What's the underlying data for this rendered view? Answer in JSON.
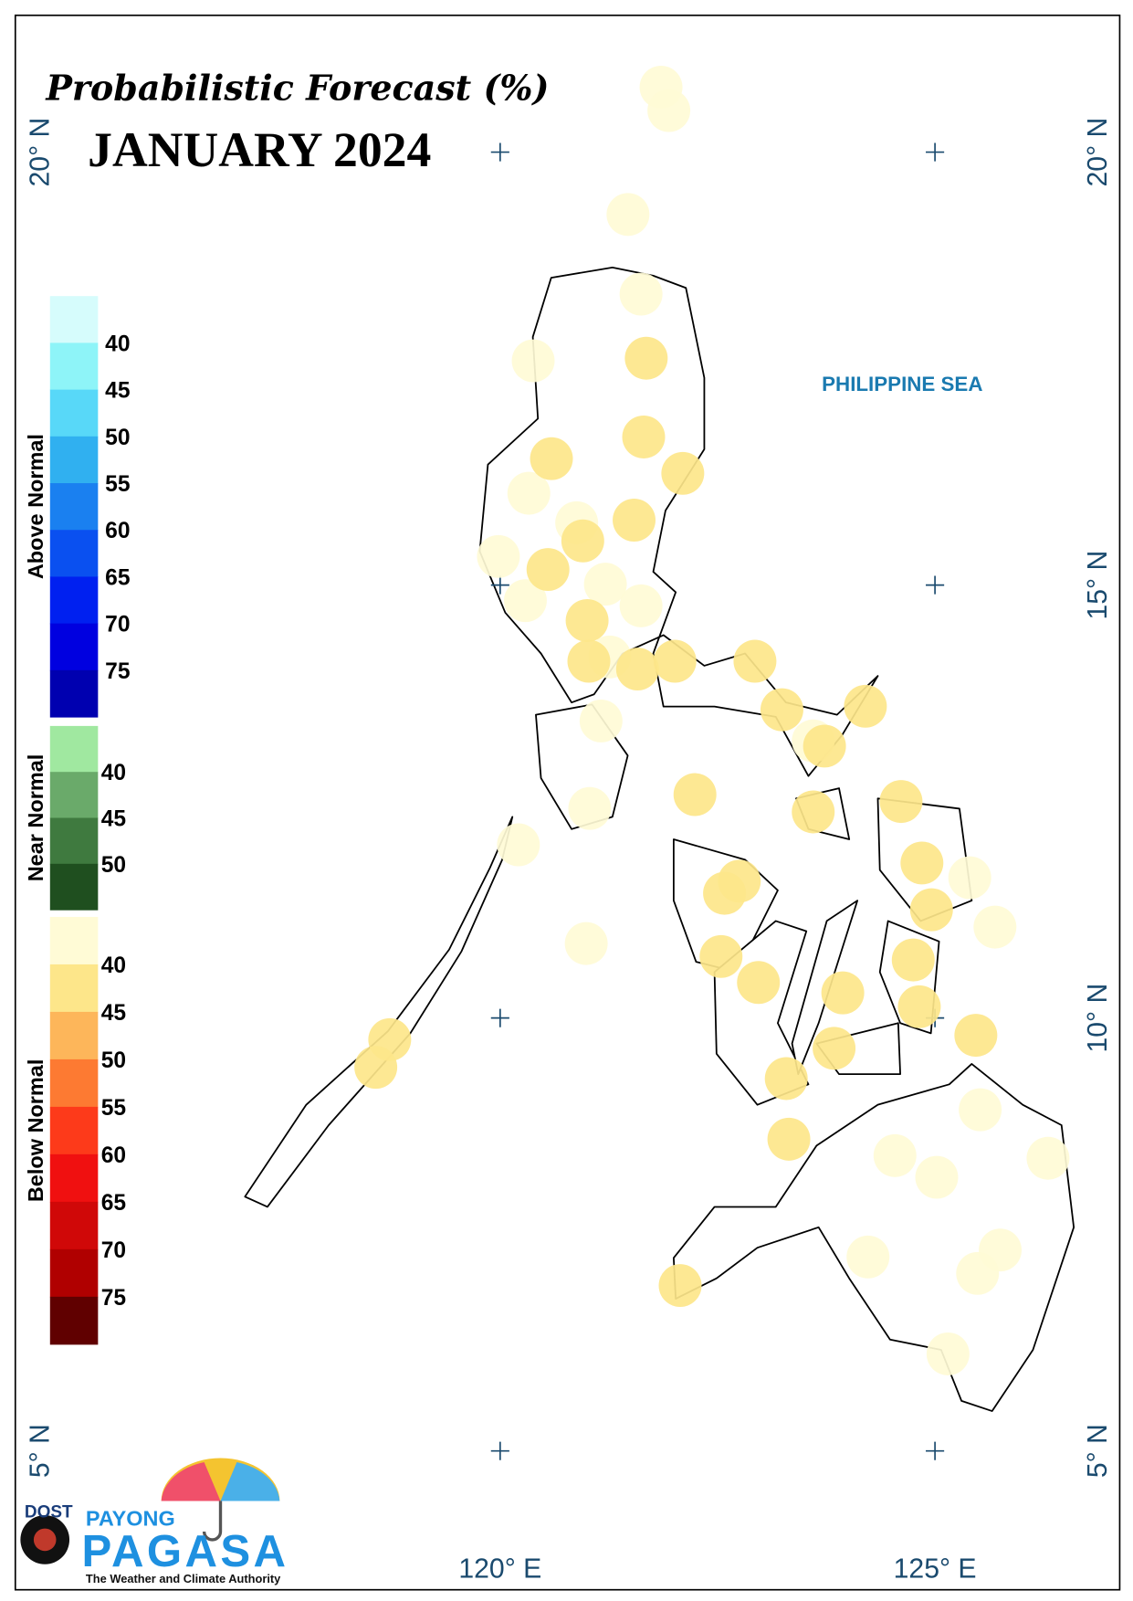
{
  "map": {
    "title": "Probabilistic Forecast (%)",
    "subtitle": "JANUARY 2024",
    "sea_label": "PHILIPPINE SEA",
    "lon_ticks": [
      {
        "value": 120,
        "label": "120° E"
      },
      {
        "value": 125,
        "label": "125° E"
      }
    ],
    "lat_ticks": [
      {
        "value": 20,
        "label": "20° N"
      },
      {
        "value": 15,
        "label": "15° N"
      },
      {
        "value": 10,
        "label": "10° N"
      },
      {
        "value": 5,
        "label": "5° N"
      }
    ],
    "legend": [
      {
        "name": "Above Normal",
        "ticks": [
          40,
          45,
          50,
          55,
          60,
          65,
          70,
          75
        ],
        "colors": [
          "#d6fcfc",
          "#8ef4f8",
          "#58d8f8",
          "#30b0f0",
          "#1a80f0",
          "#0a50f0",
          "#0020f0",
          "#0000e0",
          "#0000b0"
        ]
      },
      {
        "name": "Near Normal",
        "ticks": [
          40,
          45,
          50
        ],
        "colors": [
          "#a0e8a0",
          "#6aaa6a",
          "#3f7a3f",
          "#1f4f1f"
        ]
      },
      {
        "name": "Below Normal",
        "ticks": [
          40,
          45,
          50,
          55,
          60,
          65,
          70,
          75
        ],
        "colors": [
          "#fffbd6",
          "#fde68a",
          "#fdb65a",
          "#fd7a32",
          "#fd3a1a",
          "#f01010",
          "#d00808",
          "#b00000",
          "#600000"
        ]
      }
    ],
    "stations": [
      {
        "lon": 121.85,
        "lat": 20.75,
        "value": 38
      },
      {
        "lon": 121.94,
        "lat": 20.48,
        "value": 38
      },
      {
        "lon": 121.47,
        "lat": 19.28,
        "value": 38
      },
      {
        "lon": 121.62,
        "lat": 18.36,
        "value": 38
      },
      {
        "lon": 120.38,
        "lat": 17.59,
        "value": 38
      },
      {
        "lon": 120.33,
        "lat": 16.06,
        "value": 38
      },
      {
        "lon": 119.98,
        "lat": 15.33,
        "value": 38
      },
      {
        "lon": 120.88,
        "lat": 15.72,
        "value": 38
      },
      {
        "lon": 120.29,
        "lat": 14.82,
        "value": 38
      },
      {
        "lon": 121.21,
        "lat": 15.01,
        "value": 38
      },
      {
        "lon": 121.62,
        "lat": 14.76,
        "value": 38
      },
      {
        "lon": 121.26,
        "lat": 14.17,
        "value": 38
      },
      {
        "lon": 121.16,
        "lat": 13.43,
        "value": 38
      },
      {
        "lon": 121.03,
        "lat": 12.42,
        "value": 38
      },
      {
        "lon": 120.21,
        "lat": 12.0,
        "value": 38
      },
      {
        "lon": 120.99,
        "lat": 10.86,
        "value": 38
      },
      {
        "lon": 123.6,
        "lat": 13.2,
        "value": 38
      },
      {
        "lon": 125.4,
        "lat": 11.62,
        "value": 38
      },
      {
        "lon": 125.69,
        "lat": 11.05,
        "value": 38
      },
      {
        "lon": 125.52,
        "lat": 8.94,
        "value": 38
      },
      {
        "lon": 124.54,
        "lat": 8.41,
        "value": 38
      },
      {
        "lon": 125.02,
        "lat": 8.16,
        "value": 38
      },
      {
        "lon": 126.3,
        "lat": 8.38,
        "value": 38
      },
      {
        "lon": 124.23,
        "lat": 7.24,
        "value": 38
      },
      {
        "lon": 125.75,
        "lat": 7.32,
        "value": 38
      },
      {
        "lon": 125.49,
        "lat": 7.05,
        "value": 38
      },
      {
        "lon": 125.15,
        "lat": 6.12,
        "value": 38
      },
      {
        "lon": 121.68,
        "lat": 17.62,
        "value": 43
      },
      {
        "lon": 121.65,
        "lat": 16.71,
        "value": 43
      },
      {
        "lon": 120.59,
        "lat": 16.46,
        "value": 43
      },
      {
        "lon": 122.1,
        "lat": 16.29,
        "value": 43
      },
      {
        "lon": 121.54,
        "lat": 15.75,
        "value": 43
      },
      {
        "lon": 120.95,
        "lat": 15.51,
        "value": 43
      },
      {
        "lon": 120.55,
        "lat": 15.18,
        "value": 43
      },
      {
        "lon": 121.0,
        "lat": 14.59,
        "value": 43
      },
      {
        "lon": 121.02,
        "lat": 14.12,
        "value": 43
      },
      {
        "lon": 121.58,
        "lat": 14.03,
        "value": 43
      },
      {
        "lon": 122.01,
        "lat": 14.12,
        "value": 43
      },
      {
        "lon": 122.93,
        "lat": 14.12,
        "value": 43
      },
      {
        "lon": 123.24,
        "lat": 13.56,
        "value": 43
      },
      {
        "lon": 124.2,
        "lat": 13.6,
        "value": 43
      },
      {
        "lon": 123.73,
        "lat": 13.14,
        "value": 43
      },
      {
        "lon": 122.24,
        "lat": 12.58,
        "value": 43
      },
      {
        "lon": 123.6,
        "lat": 12.38,
        "value": 43
      },
      {
        "lon": 124.61,
        "lat": 12.5,
        "value": 43
      },
      {
        "lon": 124.85,
        "lat": 11.79,
        "value": 43
      },
      {
        "lon": 122.75,
        "lat": 11.58,
        "value": 43
      },
      {
        "lon": 122.58,
        "lat": 11.44,
        "value": 43
      },
      {
        "lon": 124.96,
        "lat": 11.25,
        "value": 43
      },
      {
        "lon": 122.54,
        "lat": 10.71,
        "value": 43
      },
      {
        "lon": 122.97,
        "lat": 10.41,
        "value": 43
      },
      {
        "lon": 124.75,
        "lat": 10.67,
        "value": 43
      },
      {
        "lon": 123.94,
        "lat": 10.29,
        "value": 43
      },
      {
        "lon": 124.82,
        "lat": 10.13,
        "value": 43
      },
      {
        "lon": 125.47,
        "lat": 9.8,
        "value": 43
      },
      {
        "lon": 118.73,
        "lat": 9.75,
        "value": 43
      },
      {
        "lon": 118.57,
        "lat": 9.43,
        "value": 43
      },
      {
        "lon": 123.84,
        "lat": 9.65,
        "value": 43
      },
      {
        "lon": 123.29,
        "lat": 9.3,
        "value": 43
      },
      {
        "lon": 123.32,
        "lat": 8.6,
        "value": 43
      },
      {
        "lon": 122.07,
        "lat": 6.91,
        "value": 43
      }
    ],
    "logo": {
      "agency": "DOST",
      "line1": "PAYONG",
      "line2": "PAGASA",
      "tagline": "The Weather and Climate Authority"
    }
  }
}
